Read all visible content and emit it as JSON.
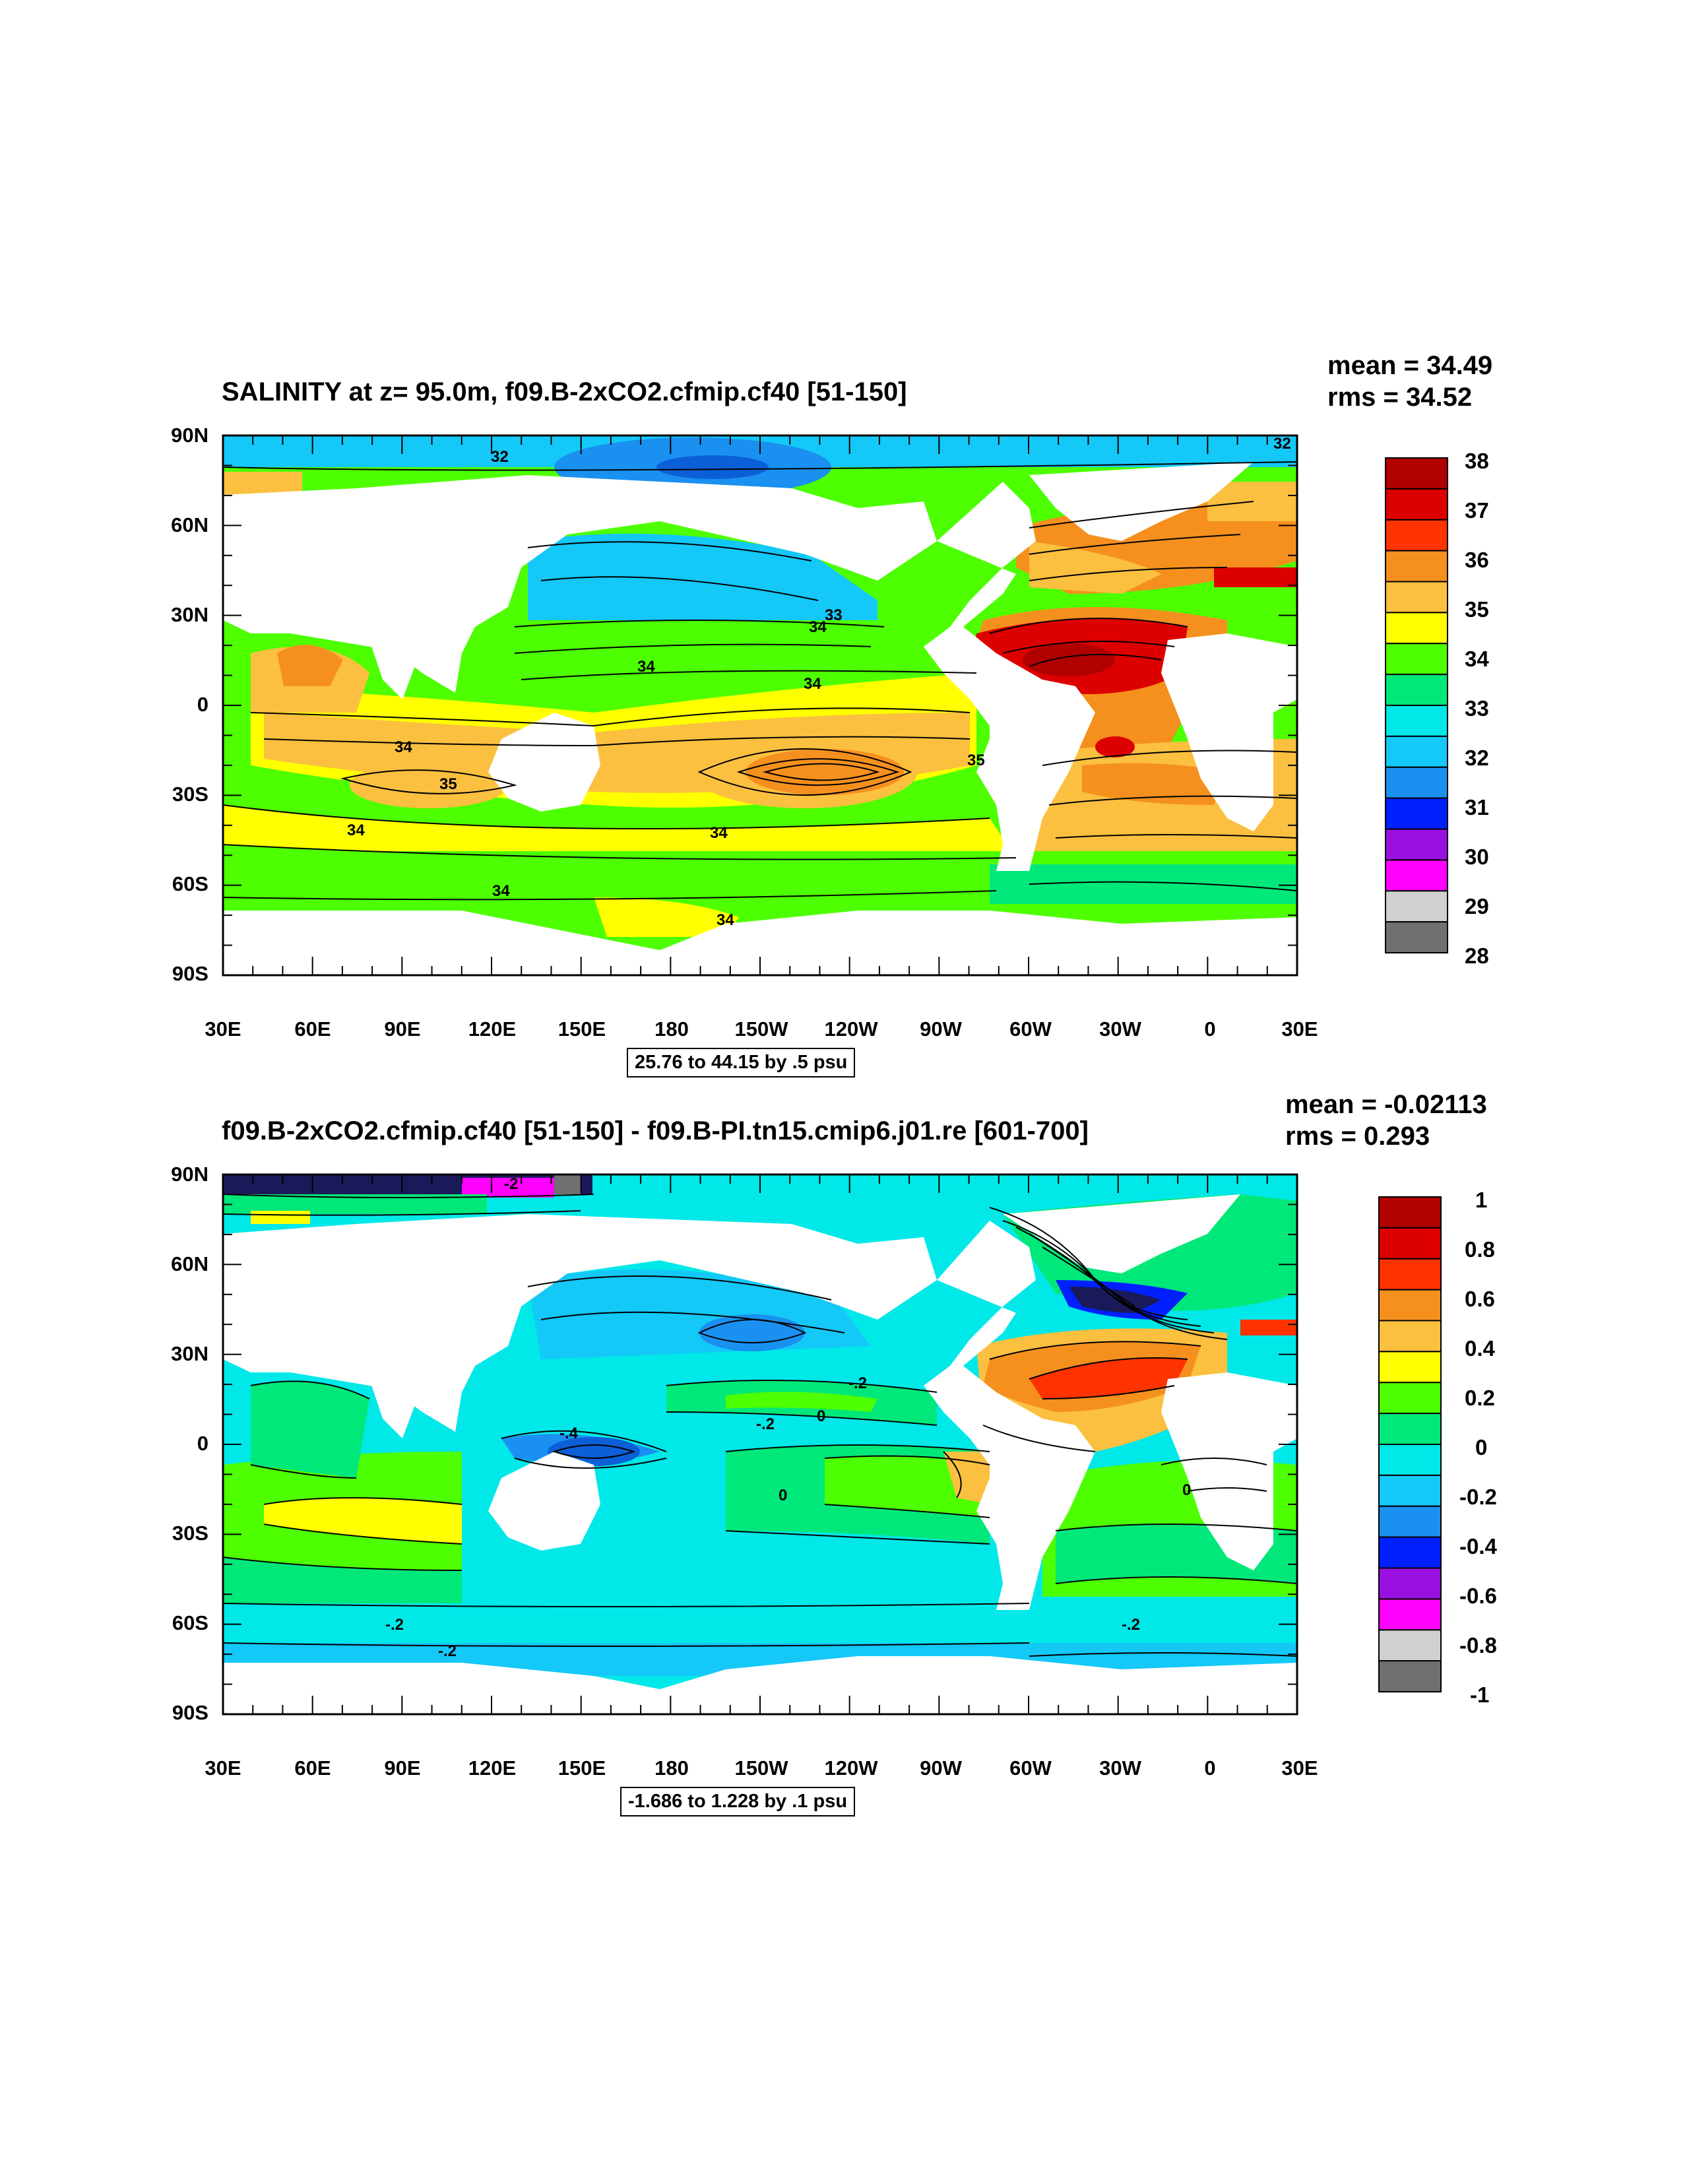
{
  "panels": [
    {
      "title": "SALINITY at z=  95.0m, f09.B-2xCO2.cfmip.cf40 [51-150]",
      "mean": "mean = 34.49",
      "rms": "rms = 34.52",
      "contour_info": "25.76 to 44.15 by .5 psu",
      "lat_labels": [
        "90N",
        "60N",
        "30N",
        "0",
        "30S",
        "60S",
        "90S"
      ],
      "lon_labels": [
        "30E",
        "60E",
        "90E",
        "120E",
        "150E",
        "180",
        "150W",
        "120W",
        "90W",
        "60W",
        "30W",
        "0",
        "30E"
      ],
      "colorbar": {
        "labels": [
          "38",
          "37",
          "36",
          "35",
          "34",
          "33",
          "32",
          "31",
          "30",
          "29",
          "28"
        ],
        "colors": [
          "#b00000",
          "#dd0000",
          "#ff3300",
          "#f5901e",
          "#fbc040",
          "#ffff00",
          "#4dff00",
          "#00e87a",
          "#00e8e8",
          "#14c8f8",
          "#1a90f0",
          "#0020ff",
          "#9a10e0",
          "#ff00ff",
          "#d0d0d0",
          "#707070"
        ]
      },
      "contour_labels": [
        "32",
        "32",
        "33",
        "34",
        "34",
        "34",
        "34",
        "35",
        "34",
        "35",
        "34",
        "34",
        "34",
        "34",
        "34"
      ]
    },
    {
      "title": "f09.B-2xCO2.cfmip.cf40 [51-150] - f09.B-PI.tn15.cmip6.j01.re [601-700]",
      "mean": "mean = -0.02113",
      "rms": "rms = 0.293",
      "contour_info": "-1.686 to 1.228 by .1 psu",
      "lat_labels": [
        "90N",
        "60N",
        "30N",
        "0",
        "30S",
        "60S",
        "90S"
      ],
      "lon_labels": [
        "30E",
        "60E",
        "90E",
        "120E",
        "150E",
        "180",
        "150W",
        "120W",
        "90W",
        "60W",
        "30W",
        "0",
        "30E"
      ],
      "colorbar": {
        "labels": [
          "1",
          "0.8",
          "0.6",
          "0.4",
          "0.2",
          "0",
          "-0.2",
          "-0.4",
          "-0.6",
          "-0.8",
          "-1"
        ],
        "colors": [
          "#b00000",
          "#dd0000",
          "#ff3300",
          "#f5901e",
          "#fbc040",
          "#ffff00",
          "#4dff00",
          "#00e87a",
          "#00e8e8",
          "#14c8f8",
          "#1a90f0",
          "#0020ff",
          "#9a10e0",
          "#ff00ff",
          "#d0d0d0",
          "#707070"
        ]
      },
      "contour_labels": [
        "-2",
        "-.2",
        "-.2",
        "0",
        "-.4",
        "0",
        "0",
        "-.2",
        "-.2",
        "-.2"
      ]
    }
  ]
}
